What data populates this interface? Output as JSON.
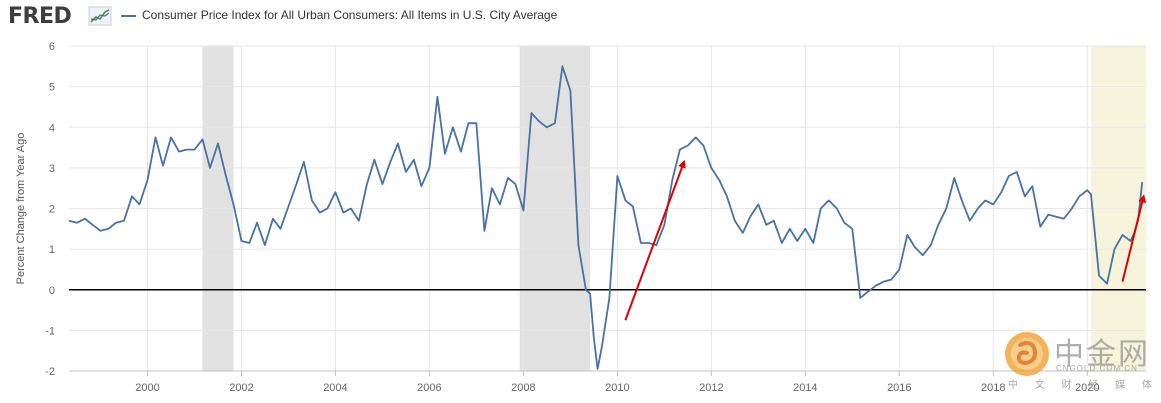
{
  "header": {
    "logo_text": "FRED",
    "logo_icon": "fred-line-chart-icon",
    "series_title": "Consumer Price Index for All Urban Consumers: All Items in U.S. City Average",
    "series_color": "#4572a7"
  },
  "chart_data": {
    "type": "line",
    "title": "",
    "xlabel": "",
    "ylabel": "Percent Change from Year Ago",
    "ylim": [
      -2,
      6
    ],
    "y_ticks": [
      "6",
      "5",
      "4",
      "3",
      "2",
      "1",
      "0",
      "-1",
      "-2"
    ],
    "x_ticks": [
      "2000",
      "2002",
      "2004",
      "2006",
      "2008",
      "2010",
      "2012",
      "2014",
      "2016",
      "2018",
      "2020"
    ],
    "xlim": [
      1998.33,
      2021.25
    ],
    "grid": true,
    "zero_line": true,
    "shaded_periods": [
      {
        "start": 2001.17,
        "end": 2001.83,
        "color": "#e1e1e1"
      },
      {
        "start": 2007.92,
        "end": 2009.42,
        "color": "#e1e1e1"
      },
      {
        "start": 2020.08,
        "end": 2021.25,
        "color": "#f5f3da"
      }
    ],
    "series": [
      {
        "name": "Consumer Price Index for All Urban Consumers: All Items in U.S. City Average",
        "color": "#4572a7",
        "points": [
          [
            1998.33,
            1.7
          ],
          [
            1998.5,
            1.65
          ],
          [
            1998.67,
            1.75
          ],
          [
            1998.83,
            1.6
          ],
          [
            1999.0,
            1.45
          ],
          [
            1999.17,
            1.5
          ],
          [
            1999.33,
            1.65
          ],
          [
            1999.5,
            1.7
          ],
          [
            1999.67,
            2.3
          ],
          [
            1999.83,
            2.1
          ],
          [
            2000.0,
            2.7
          ],
          [
            2000.17,
            3.75
          ],
          [
            2000.33,
            3.05
          ],
          [
            2000.5,
            3.75
          ],
          [
            2000.67,
            3.4
          ],
          [
            2000.83,
            3.45
          ],
          [
            2001.0,
            3.45
          ],
          [
            2001.17,
            3.7
          ],
          [
            2001.33,
            3.0
          ],
          [
            2001.5,
            3.6
          ],
          [
            2001.67,
            2.8
          ],
          [
            2001.83,
            2.1
          ],
          [
            2002.0,
            1.2
          ],
          [
            2002.17,
            1.15
          ],
          [
            2002.33,
            1.65
          ],
          [
            2002.5,
            1.1
          ],
          [
            2002.67,
            1.75
          ],
          [
            2002.83,
            1.5
          ],
          [
            2003.0,
            2.05
          ],
          [
            2003.17,
            2.6
          ],
          [
            2003.33,
            3.15
          ],
          [
            2003.5,
            2.2
          ],
          [
            2003.67,
            1.9
          ],
          [
            2003.83,
            2.0
          ],
          [
            2004.0,
            2.4
          ],
          [
            2004.17,
            1.9
          ],
          [
            2004.33,
            2.0
          ],
          [
            2004.5,
            1.7
          ],
          [
            2004.67,
            2.6
          ],
          [
            2004.83,
            3.2
          ],
          [
            2005.0,
            2.6
          ],
          [
            2005.17,
            3.15
          ],
          [
            2005.33,
            3.6
          ],
          [
            2005.5,
            2.9
          ],
          [
            2005.67,
            3.2
          ],
          [
            2005.83,
            2.55
          ],
          [
            2006.0,
            3.0
          ],
          [
            2006.17,
            4.75
          ],
          [
            2006.33,
            3.35
          ],
          [
            2006.5,
            4.0
          ],
          [
            2006.67,
            3.4
          ],
          [
            2006.83,
            4.1
          ],
          [
            2007.0,
            4.1
          ],
          [
            2007.17,
            1.45
          ],
          [
            2007.33,
            2.5
          ],
          [
            2007.5,
            2.1
          ],
          [
            2007.67,
            2.75
          ],
          [
            2007.83,
            2.6
          ],
          [
            2008.0,
            1.95
          ],
          [
            2008.17,
            4.35
          ],
          [
            2008.33,
            4.15
          ],
          [
            2008.5,
            4.0
          ],
          [
            2008.67,
            4.1
          ],
          [
            2008.83,
            5.5
          ],
          [
            2009.0,
            4.9
          ],
          [
            2009.17,
            1.1
          ],
          [
            2009.33,
            0.0
          ],
          [
            2009.42,
            -0.1
          ],
          [
            2009.5,
            -1.2
          ],
          [
            2009.58,
            -1.95
          ],
          [
            2009.67,
            -1.4
          ],
          [
            2009.83,
            -0.2
          ],
          [
            2010.0,
            2.8
          ],
          [
            2010.17,
            2.2
          ],
          [
            2010.33,
            2.05
          ],
          [
            2010.5,
            1.15
          ],
          [
            2010.67,
            1.15
          ],
          [
            2010.83,
            1.1
          ],
          [
            2011.0,
            1.6
          ],
          [
            2011.17,
            2.7
          ],
          [
            2011.33,
            3.45
          ],
          [
            2011.5,
            3.55
          ],
          [
            2011.67,
            3.75
          ],
          [
            2011.83,
            3.55
          ],
          [
            2012.0,
            3.0
          ],
          [
            2012.17,
            2.7
          ],
          [
            2012.33,
            2.3
          ],
          [
            2012.5,
            1.7
          ],
          [
            2012.67,
            1.4
          ],
          [
            2012.83,
            1.8
          ],
          [
            2013.0,
            2.1
          ],
          [
            2013.17,
            1.6
          ],
          [
            2013.33,
            1.7
          ],
          [
            2013.5,
            1.15
          ],
          [
            2013.67,
            1.5
          ],
          [
            2013.83,
            1.2
          ],
          [
            2014.0,
            1.5
          ],
          [
            2014.17,
            1.15
          ],
          [
            2014.33,
            2.0
          ],
          [
            2014.5,
            2.2
          ],
          [
            2014.67,
            2.0
          ],
          [
            2014.83,
            1.65
          ],
          [
            2015.0,
            1.5
          ],
          [
            2015.17,
            -0.2
          ],
          [
            2015.33,
            -0.05
          ],
          [
            2015.5,
            0.1
          ],
          [
            2015.67,
            0.2
          ],
          [
            2015.83,
            0.25
          ],
          [
            2016.0,
            0.5
          ],
          [
            2016.17,
            1.35
          ],
          [
            2016.33,
            1.05
          ],
          [
            2016.5,
            0.85
          ],
          [
            2016.67,
            1.1
          ],
          [
            2016.83,
            1.6
          ],
          [
            2017.0,
            2.0
          ],
          [
            2017.17,
            2.75
          ],
          [
            2017.33,
            2.2
          ],
          [
            2017.5,
            1.7
          ],
          [
            2017.67,
            2.0
          ],
          [
            2017.83,
            2.2
          ],
          [
            2018.0,
            2.1
          ],
          [
            2018.17,
            2.4
          ],
          [
            2018.33,
            2.8
          ],
          [
            2018.5,
            2.9
          ],
          [
            2018.67,
            2.3
          ],
          [
            2018.83,
            2.55
          ],
          [
            2019.0,
            1.55
          ],
          [
            2019.17,
            1.85
          ],
          [
            2019.33,
            1.8
          ],
          [
            2019.5,
            1.75
          ],
          [
            2019.67,
            2.0
          ],
          [
            2019.83,
            2.3
          ],
          [
            2020.0,
            2.45
          ],
          [
            2020.08,
            2.35
          ],
          [
            2020.25,
            0.35
          ],
          [
            2020.42,
            0.15
          ],
          [
            2020.58,
            1.0
          ],
          [
            2020.75,
            1.35
          ],
          [
            2020.92,
            1.2
          ],
          [
            2021.0,
            1.4
          ],
          [
            2021.08,
            1.7
          ],
          [
            2021.17,
            2.65
          ]
        ]
      }
    ],
    "annotations": [
      {
        "type": "arrow",
        "color": "#e00000",
        "from": [
          2010.17,
          -0.75
        ],
        "to": [
          2011.42,
          3.15
        ]
      },
      {
        "type": "arrow",
        "color": "#e00000",
        "from": [
          2020.75,
          0.2
        ],
        "to": [
          2021.2,
          2.3
        ]
      }
    ]
  },
  "watermark": {
    "logo_text": "中金网",
    "url": "CNGOLD.COM.CN",
    "subtitle": "中 文 财 经 媒 体",
    "icon": "cngold-coin-logo-icon"
  }
}
